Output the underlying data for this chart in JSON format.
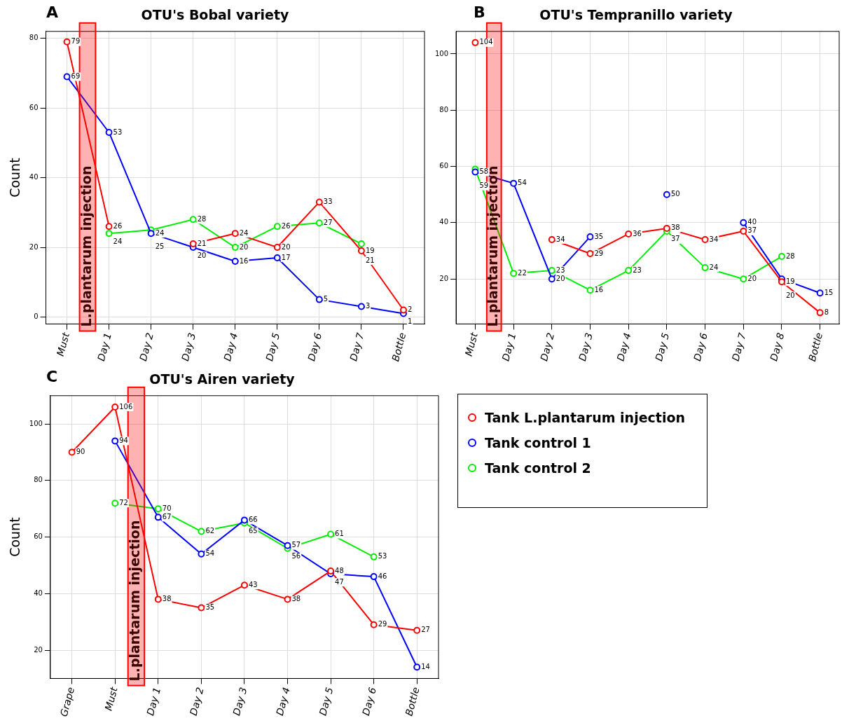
{
  "chart_data": [
    {
      "type": "line",
      "title": "OTU's Bobal variety",
      "ylabel": "Count",
      "annotations": [
        "A"
      ],
      "categories": [
        "Must",
        "Day 1",
        "Day 2",
        "Day 3",
        "Day 4",
        "Day 5",
        "Day 6",
        "Day 7",
        "Bottle"
      ],
      "series": [
        {
          "color": "#ff0000",
          "values": [
            79,
            26,
            null,
            21,
            24,
            20,
            33,
            19,
            2
          ]
        },
        {
          "color": "#0000ff",
          "values": [
            69,
            53,
            24,
            20,
            16,
            17,
            5,
            3,
            1
          ]
        },
        {
          "color": "#00ee00",
          "values": [
            null,
            24,
            25,
            28,
            20,
            26,
            27,
            21,
            null
          ]
        }
      ],
      "ylim": [
        -2,
        82
      ],
      "yticks": [
        0,
        20,
        40,
        60,
        80
      ],
      "grid": true,
      "marker": "circle",
      "data_labels": true,
      "bands": [
        {
          "axis": "x",
          "from": "Must",
          "to": "Day 1",
          "label": "L.plantarum injection",
          "color": "#ff0000"
        }
      ]
    },
    {
      "type": "line",
      "title": "OTU's Tempranillo variety",
      "annotations": [
        "B"
      ],
      "categories": [
        "Must",
        "Day 1",
        "Day 2",
        "Day 3",
        "Day 4",
        "Day 5",
        "Day 6",
        "Day 7",
        "Day 8",
        "Bottle"
      ],
      "series": [
        {
          "color": "#ff0000",
          "values": [
            104,
            null,
            34,
            29,
            36,
            38,
            34,
            37,
            19,
            8
          ]
        },
        {
          "color": "#0000ff",
          "values": [
            58,
            54,
            20,
            35,
            null,
            50,
            null,
            40,
            20,
            15
          ]
        },
        {
          "color": "#00ee00",
          "values": [
            59,
            22,
            23,
            16,
            23,
            37,
            24,
            20,
            28,
            null
          ]
        }
      ],
      "ylim": [
        4,
        108
      ],
      "yticks": [
        20,
        40,
        60,
        80,
        100
      ],
      "grid": true,
      "marker": "circle",
      "data_labels": true,
      "bands": [
        {
          "axis": "x",
          "from": "Must",
          "to": "Day 1",
          "label": "L.plantarum injection",
          "color": "#ff0000"
        }
      ]
    },
    {
      "type": "line",
      "title": "OTU's Airen variety",
      "ylabel": "Count",
      "annotations": [
        "C"
      ],
      "categories": [
        "Grape",
        "Must",
        "Day 1",
        "Day 2",
        "Day 3",
        "Day 4",
        "Day 5",
        "Day 6",
        "Bottle"
      ],
      "series": [
        {
          "name": "Tank L.plantarum injection",
          "color": "#ff0000",
          "values": [
            90,
            106,
            38,
            35,
            43,
            38,
            48,
            29,
            27
          ]
        },
        {
          "name": "Tank control 1",
          "color": "#0000ff",
          "values": [
            null,
            94,
            67,
            54,
            66,
            57,
            47,
            46,
            14
          ]
        },
        {
          "name": "Tank control 2",
          "color": "#00ee00",
          "values": [
            null,
            72,
            70,
            62,
            65,
            56,
            61,
            53,
            null
          ]
        }
      ],
      "ylim": [
        10,
        110
      ],
      "yticks": [
        20,
        40,
        60,
        80,
        100
      ],
      "grid": true,
      "marker": "circle",
      "data_labels": true,
      "legend": "right",
      "bands": [
        {
          "axis": "x",
          "from": "Must",
          "to": "Day 1",
          "label": "L.plantarum injection",
          "color": "#ff0000"
        }
      ]
    }
  ]
}
